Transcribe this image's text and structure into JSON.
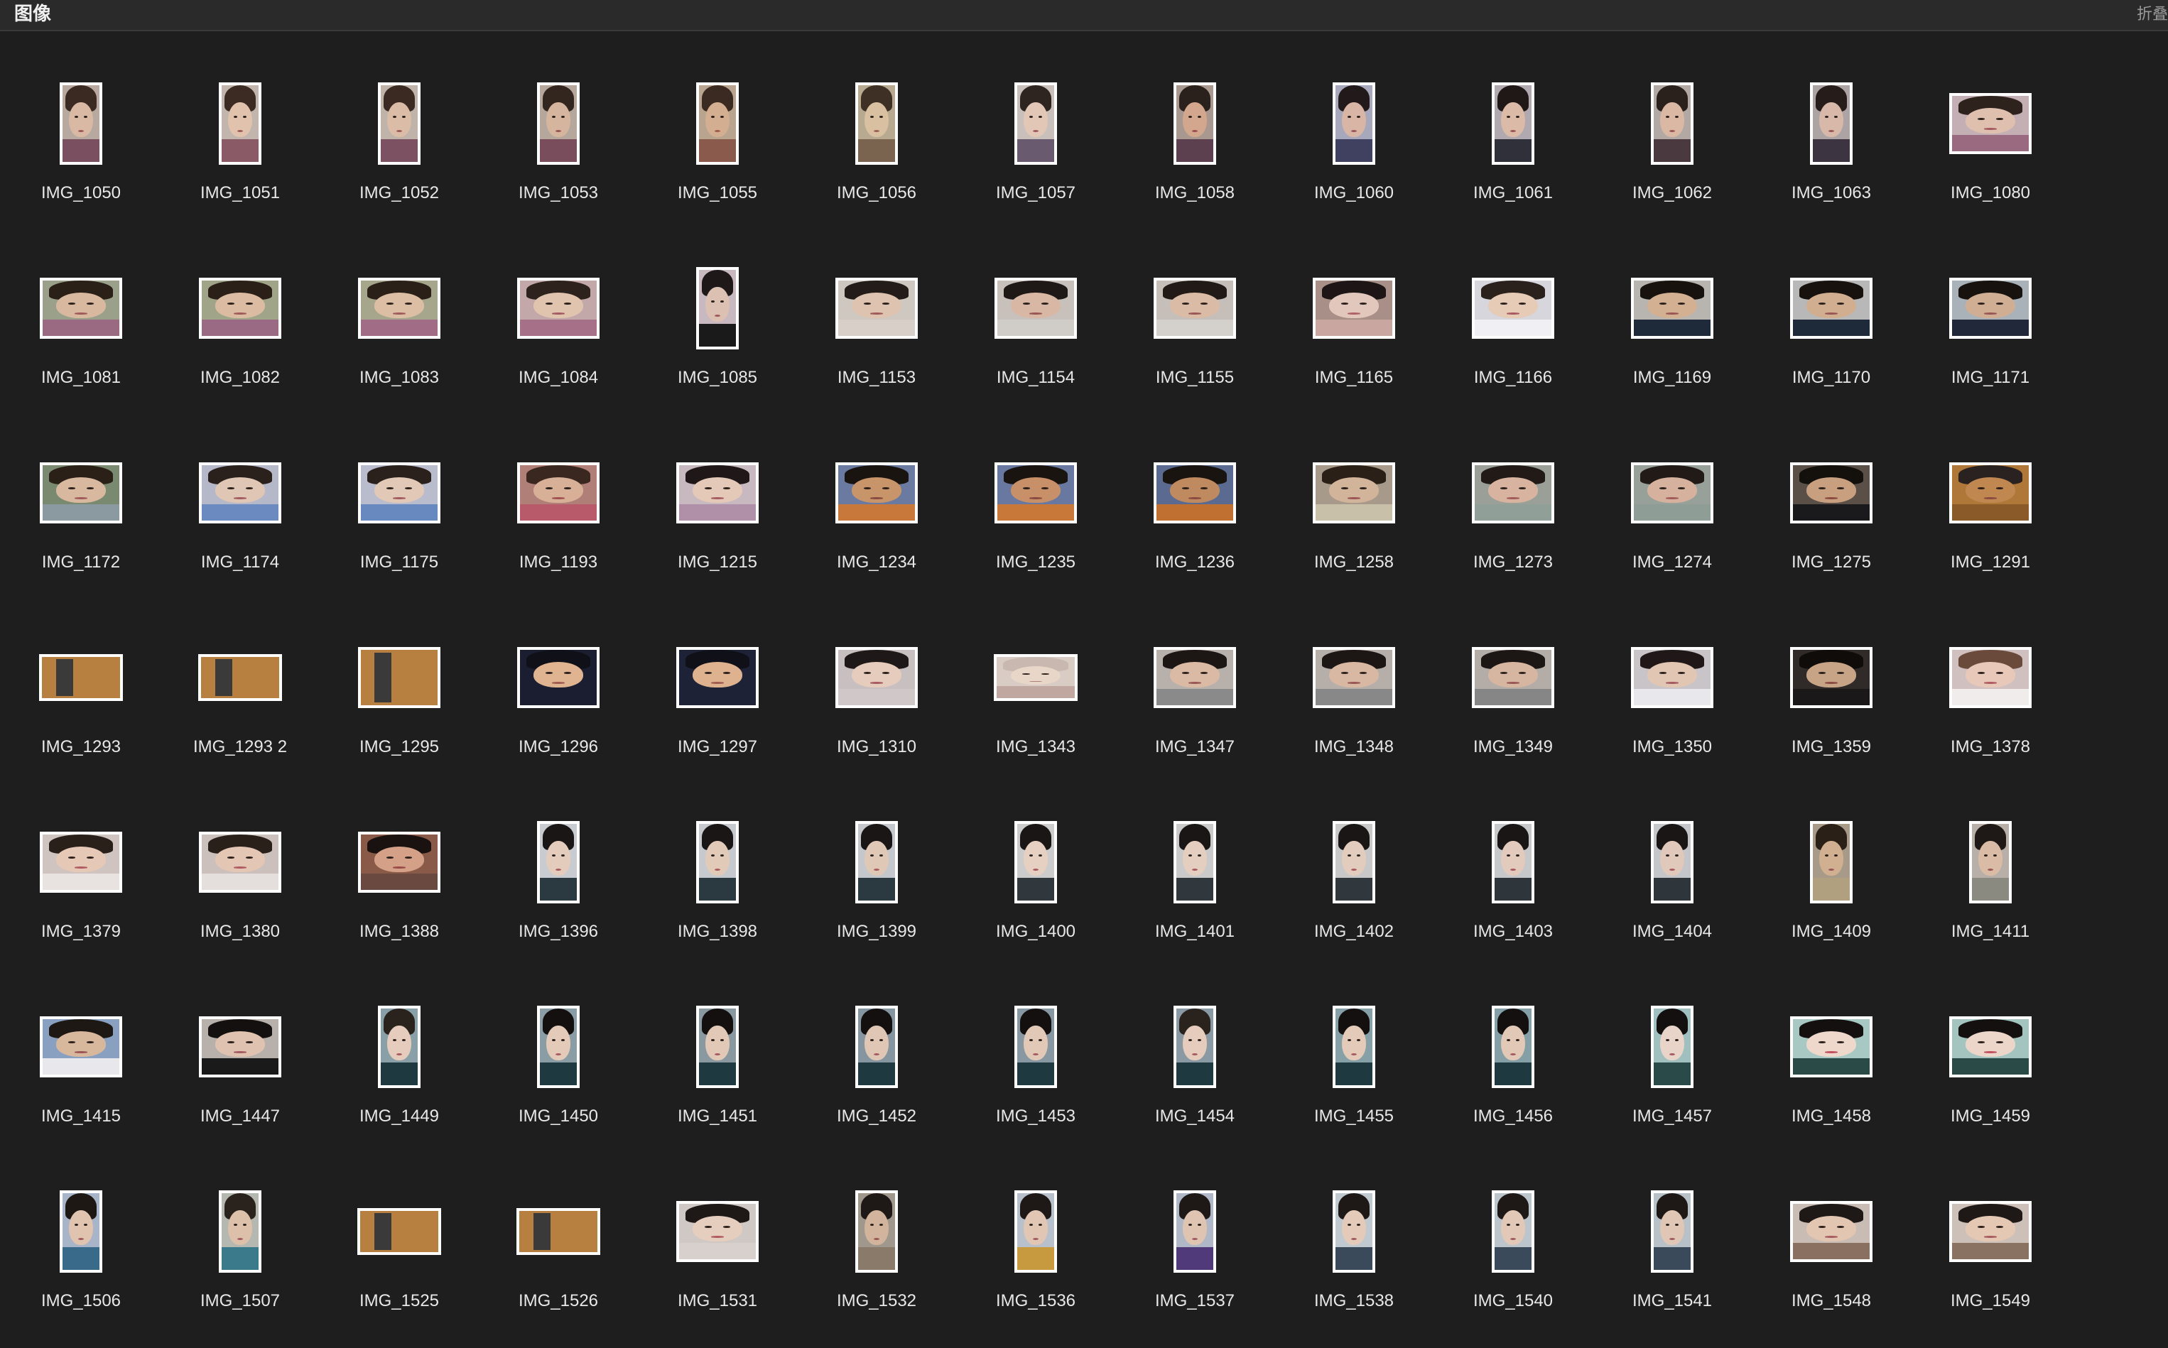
{
  "header": {
    "title": "图像",
    "collapse_label": "折叠"
  },
  "colors": {
    "background": "#1e1e1e",
    "header_bg": "#2a2a2a",
    "label_text": "#e8e8e8"
  },
  "images": [
    {
      "name": "IMG_1050",
      "shape": "portrait",
      "bg": "#b8a9a0",
      "skin": "#d9b9a3",
      "hair": "#3a2a22",
      "shirt": "#7a5060",
      "mouth": "#a0575a"
    },
    {
      "name": "IMG_1051",
      "shape": "portrait",
      "bg": "#c2b5ae",
      "skin": "#e0c2ad",
      "hair": "#3b2b22",
      "shirt": "#8a5a66",
      "mouth": "#a05a5a"
    },
    {
      "name": "IMG_1052",
      "shape": "portrait",
      "bg": "#bfb3aa",
      "skin": "#dbbca6",
      "hair": "#3a2a22",
      "shirt": "#7c5262",
      "mouth": "#9e5a58"
    },
    {
      "name": "IMG_1053",
      "shape": "portrait",
      "bg": "#b6a79c",
      "skin": "#d6b59f",
      "hair": "#33261f",
      "shirt": "#7a4d5c",
      "mouth": "#9a5555"
    },
    {
      "name": "IMG_1055",
      "shape": "portrait",
      "bg": "#b9a58f",
      "skin": "#d4ae90",
      "hair": "#3a2a22",
      "shirt": "#8a5a4c",
      "mouth": "#a05a50"
    },
    {
      "name": "IMG_1056",
      "shape": "portrait",
      "bg": "#b8aa90",
      "skin": "#d8c0a0",
      "hair": "#3e3024",
      "shirt": "#7a6450",
      "mouth": "#a0605a"
    },
    {
      "name": "IMG_1057",
      "shape": "portrait",
      "bg": "#c9c0bc",
      "skin": "#e2c6b6",
      "hair": "#2e2420",
      "shirt": "#6a5a70",
      "mouth": "#a05a60"
    },
    {
      "name": "IMG_1058",
      "shape": "portrait",
      "bg": "#a89890",
      "skin": "#d3a78e",
      "hair": "#2a201c",
      "shirt": "#5c4050",
      "mouth": "#9a4e50"
    },
    {
      "name": "IMG_1060",
      "shape": "portrait",
      "bg": "#a8a8bc",
      "skin": "#d9b5a5",
      "hair": "#221a1a",
      "shirt": "#404060",
      "mouth": "#9c5558"
    },
    {
      "name": "IMG_1061",
      "shape": "portrait",
      "bg": "#b0aab0",
      "skin": "#dbbba8",
      "hair": "#201816",
      "shirt": "#30303a",
      "mouth": "#9a5555"
    },
    {
      "name": "IMG_1062",
      "shape": "portrait",
      "bg": "#b2a8a4",
      "skin": "#dab8a4",
      "hair": "#2a201c",
      "shirt": "#4a3a40",
      "mouth": "#9a5555"
    },
    {
      "name": "IMG_1063",
      "shape": "portrait",
      "bg": "#aca4a4",
      "skin": "#d8b8a8",
      "hair": "#261d1a",
      "shirt": "#3c3440",
      "mouth": "#9a5555"
    },
    {
      "name": "IMG_1080",
      "shape": "wide",
      "bg": "#c4b0b4",
      "skin": "#dfc0ae",
      "hair": "#2e221c",
      "shirt": "#9a6a80",
      "mouth": "#a35a60"
    },
    {
      "name": "IMG_1081",
      "shape": "wide",
      "bg": "#9aa08a",
      "skin": "#d9b8a0",
      "hair": "#2a2018",
      "shirt": "#9a6a82",
      "mouth": "#a05a5a"
    },
    {
      "name": "IMG_1082",
      "shape": "wide",
      "bg": "#a0a488",
      "skin": "#dbbca2",
      "hair": "#2a2018",
      "shirt": "#9a6a84",
      "mouth": "#a05a5a"
    },
    {
      "name": "IMG_1083",
      "shape": "wide",
      "bg": "#a6a68c",
      "skin": "#dcbea4",
      "hair": "#2a2018",
      "shirt": "#a06c86",
      "mouth": "#a05a5a"
    },
    {
      "name": "IMG_1084",
      "shape": "wide",
      "bg": "#c2a8a8",
      "skin": "#e0c4ae",
      "hair": "#2e221c",
      "shirt": "#a67088",
      "mouth": "#a35a60"
    },
    {
      "name": "IMG_1085",
      "shape": "portrait",
      "bg": "#c8b8c0",
      "skin": "#dcc0b2",
      "hair": "#1e1818",
      "shirt": "#1a1a1a",
      "mouth": "#a05a5a"
    },
    {
      "name": "IMG_1153",
      "shape": "wide",
      "bg": "#cfc8c0",
      "skin": "#dec4b0",
      "hair": "#241c18",
      "shirt": "#d8d0c8",
      "mouth": "#a05a5a"
    },
    {
      "name": "IMG_1154",
      "shape": "wide",
      "bg": "#c8c0ba",
      "skin": "#d8b8a4",
      "hair": "#1e1816",
      "shirt": "#d0ccc8",
      "mouth": "#9a5555"
    },
    {
      "name": "IMG_1155",
      "shape": "wide",
      "bg": "#c6beb8",
      "skin": "#dabca6",
      "hair": "#221a16",
      "shirt": "#d4d0cc",
      "mouth": "#9a5555"
    },
    {
      "name": "IMG_1165",
      "shape": "wide",
      "bg": "#a89088",
      "skin": "#e2c8bc",
      "hair": "#1e1616",
      "shirt": "#caa6a0",
      "mouth": "#b06068"
    },
    {
      "name": "IMG_1166",
      "shape": "wide",
      "bg": "#d6d6dc",
      "skin": "#e6cbb6",
      "hair": "#2a201c",
      "shirt": "#f0f0f4",
      "mouth": "#a85a60"
    },
    {
      "name": "IMG_1169",
      "shape": "wide",
      "bg": "#b8b4b0",
      "skin": "#d4b092",
      "hair": "#18120e",
      "shirt": "#1e2a3a",
      "mouth": "#9a5555"
    },
    {
      "name": "IMG_1170",
      "shape": "wide",
      "bg": "#b8b8b8",
      "skin": "#d2ae90",
      "hair": "#18120e",
      "shirt": "#1e2a3a",
      "mouth": "#9a5555"
    },
    {
      "name": "IMG_1171",
      "shape": "wide",
      "bg": "#a8b2b8",
      "skin": "#cfae94",
      "hair": "#18120e",
      "shirt": "#20283a",
      "mouth": "#9a5555"
    },
    {
      "name": "IMG_1172",
      "shape": "wide",
      "bg": "#7a8a70",
      "skin": "#d8b89e",
      "hair": "#2a2018",
      "shirt": "#8a9aa0",
      "mouth": "#a05a5a"
    },
    {
      "name": "IMG_1174",
      "shape": "wide",
      "bg": "#b4b8c8",
      "skin": "#e0c6b4",
      "hair": "#2a201c",
      "shirt": "#6a8ac0",
      "mouth": "#a35a60"
    },
    {
      "name": "IMG_1175",
      "shape": "wide",
      "bg": "#b8bccc",
      "skin": "#e2c8b6",
      "hair": "#2a201c",
      "shirt": "#6888c0",
      "mouth": "#a35a60"
    },
    {
      "name": "IMG_1193",
      "shape": "wide",
      "bg": "#b08078",
      "skin": "#d8b098",
      "hair": "#3a2820",
      "shirt": "#b85a6a",
      "mouth": "#a05050"
    },
    {
      "name": "IMG_1215",
      "shape": "wide",
      "bg": "#c8b8c0",
      "skin": "#e4c8b8",
      "hair": "#201818",
      "shirt": "#b090a8",
      "mouth": "#a85a62"
    },
    {
      "name": "IMG_1234",
      "shape": "wide",
      "bg": "#6a7aa0",
      "skin": "#c8946a",
      "hair": "#1a1410",
      "shirt": "#c8783a",
      "mouth": "#8a4a40"
    },
    {
      "name": "IMG_1235",
      "shape": "wide",
      "bg": "#6878a0",
      "skin": "#c89068",
      "hair": "#1a1410",
      "shirt": "#c87838",
      "mouth": "#8a4a40"
    },
    {
      "name": "IMG_1236",
      "shape": "wide",
      "bg": "#5a6a90",
      "skin": "#c08a60",
      "hair": "#1a1410",
      "shirt": "#c07030",
      "mouth": "#8a4a40"
    },
    {
      "name": "IMG_1258",
      "shape": "wide",
      "bg": "#a89a8a",
      "skin": "#d2b49a",
      "hair": "#2a2018",
      "shirt": "#c8c0a8",
      "mouth": "#9a5555"
    },
    {
      "name": "IMG_1273",
      "shape": "wide",
      "bg": "#9aa098",
      "skin": "#d8b4a0",
      "hair": "#221a16",
      "shirt": "#90a098",
      "mouth": "#a05a5a"
    },
    {
      "name": "IMG_1274",
      "shape": "wide",
      "bg": "#98a09a",
      "skin": "#d6b29e",
      "hair": "#221a16",
      "shirt": "#8e9e96",
      "mouth": "#a05a5a"
    },
    {
      "name": "IMG_1275",
      "shape": "wide",
      "bg": "#5a5048",
      "skin": "#c8a080",
      "hair": "#14100c",
      "shirt": "#1a1a1c",
      "mouth": "#8a4a40"
    },
    {
      "name": "IMG_1291",
      "shape": "wide",
      "bg": "#b07838",
      "skin": "#c08850",
      "hair": "#2a2220",
      "shirt": "#8a5a28",
      "mouth": "#8a4a40"
    },
    {
      "name": "IMG_1293",
      "shape": "landscape",
      "bg": "#b88040",
      "skin": "#c89050",
      "hair": "#2a2220",
      "shirt": "#9a6a30",
      "mouth": "#8a4a40",
      "door": true
    },
    {
      "name": "IMG_1293 2",
      "shape": "landscape",
      "bg": "#b88040",
      "skin": "#c89050",
      "hair": "#2a2220",
      "shirt": "#9a6a30",
      "mouth": "#8a4a40",
      "door": true
    },
    {
      "name": "IMG_1295",
      "shape": "wide",
      "bg": "#b88040",
      "skin": "#c89050",
      "hair": "#2a2220",
      "shirt": "#9a6a30",
      "mouth": "#8a4a40",
      "door": true
    },
    {
      "name": "IMG_1296",
      "shape": "wide",
      "bg": "#1a1e30",
      "skin": "#e0b490",
      "hair": "#101018",
      "shirt": "#1a1e30",
      "mouth": "#a05a50"
    },
    {
      "name": "IMG_1297",
      "shape": "wide",
      "bg": "#1e2236",
      "skin": "#deb28e",
      "hair": "#101018",
      "shirt": "#1e2236",
      "mouth": "#a05a50"
    },
    {
      "name": "IMG_1310",
      "shape": "wide",
      "bg": "#c8c0c0",
      "skin": "#e6ccbc",
      "hair": "#1e1818",
      "shirt": "#d0c8c8",
      "mouth": "#a85a62"
    },
    {
      "name": "IMG_1343",
      "shape": "landscape",
      "bg": "#d8ccc4",
      "skin": "#e8d6c8",
      "hair": "#c8b8b0",
      "shirt": "#c0a8a0",
      "mouth": "#b08078"
    },
    {
      "name": "IMG_1347",
      "shape": "wide",
      "bg": "#b8b0aa",
      "skin": "#dabaa4",
      "hair": "#1c1614",
      "shirt": "#8a8a8a",
      "mouth": "#9a5555"
    },
    {
      "name": "IMG_1348",
      "shape": "wide",
      "bg": "#b6aea8",
      "skin": "#d8b8a2",
      "hair": "#1c1614",
      "shirt": "#888888",
      "mouth": "#9a5555"
    },
    {
      "name": "IMG_1349",
      "shape": "wide",
      "bg": "#b4aca6",
      "skin": "#d6b6a0",
      "hair": "#1c1614",
      "shirt": "#868686",
      "mouth": "#9a5555"
    },
    {
      "name": "IMG_1350",
      "shape": "wide",
      "bg": "#c8c4c8",
      "skin": "#e2c6b4",
      "hair": "#201818",
      "shirt": "#e8e8ec",
      "mouth": "#a35a60"
    },
    {
      "name": "IMG_1359",
      "shape": "wide",
      "bg": "#302a28",
      "skin": "#c8a486",
      "hair": "#100c0a",
      "shirt": "#1a1818",
      "mouth": "#8a4a40"
    },
    {
      "name": "IMG_1378",
      "shape": "wide",
      "bg": "#d0c0c0",
      "skin": "#e8c8b8",
      "hair": "#6a4a3a",
      "shirt": "#f0ecec",
      "mouth": "#b05a62"
    },
    {
      "name": "IMG_1379",
      "shape": "wide",
      "bg": "#d0c4c0",
      "skin": "#e6c8b6",
      "hair": "#2a201a",
      "shirt": "#e8e2e0",
      "mouth": "#b05a62"
    },
    {
      "name": "IMG_1380",
      "shape": "wide",
      "bg": "#ccc0bc",
      "skin": "#e4c6b4",
      "hair": "#2a201a",
      "shirt": "#e4dedc",
      "mouth": "#b05a62"
    },
    {
      "name": "IMG_1388",
      "shape": "wide",
      "bg": "#8a5a48",
      "skin": "#d4a088",
      "hair": "#1a1210",
      "shirt": "#6a4a40",
      "mouth": "#9a4a48"
    },
    {
      "name": "IMG_1396",
      "shape": "portrait",
      "bg": "#c8ccd0",
      "skin": "#e4ccbc",
      "hair": "#1a1616",
      "shirt": "#2a3a40",
      "mouth": "#a85a60"
    },
    {
      "name": "IMG_1398",
      "shape": "portrait",
      "bg": "#c6cace",
      "skin": "#e2cab8",
      "hair": "#1a1616",
      "shirt": "#2a3a40",
      "mouth": "#a85a60"
    },
    {
      "name": "IMG_1399",
      "shape": "portrait",
      "bg": "#c4c8cc",
      "skin": "#e0c8b6",
      "hair": "#1a1616",
      "shirt": "#2a3a40",
      "mouth": "#a85a60"
    },
    {
      "name": "IMG_1400",
      "shape": "portrait",
      "bg": "#cccccc",
      "skin": "#e6d0c2",
      "hair": "#1a1616",
      "shirt": "#30383e",
      "mouth": "#a85a60"
    },
    {
      "name": "IMG_1401",
      "shape": "portrait",
      "bg": "#cacaca",
      "skin": "#e4cec0",
      "hair": "#1a1616",
      "shirt": "#30383e",
      "mouth": "#a85a60"
    },
    {
      "name": "IMG_1402",
      "shape": "portrait",
      "bg": "#c8c8c8",
      "skin": "#e2ccbe",
      "hair": "#1a1616",
      "shirt": "#30383e",
      "mouth": "#a85a60"
    },
    {
      "name": "IMG_1403",
      "shape": "portrait",
      "bg": "#c6c8ca",
      "skin": "#e2cabc",
      "hair": "#1a1616",
      "shirt": "#2e363c",
      "mouth": "#a85a60"
    },
    {
      "name": "IMG_1404",
      "shape": "portrait",
      "bg": "#c4c6ca",
      "skin": "#e0c8ba",
      "hair": "#1a1616",
      "shirt": "#2e363c",
      "mouth": "#a85a60"
    },
    {
      "name": "IMG_1409",
      "shape": "portrait",
      "bg": "#a89a88",
      "skin": "#d0b090",
      "hair": "#2a2018",
      "shirt": "#b0a080",
      "mouth": "#9a5555"
    },
    {
      "name": "IMG_1411",
      "shape": "portrait",
      "bg": "#b8b0a8",
      "skin": "#dabca6",
      "hair": "#1e1816",
      "shirt": "#8a8a80",
      "mouth": "#9a5555"
    },
    {
      "name": "IMG_1415",
      "shape": "wide",
      "bg": "#8aa0c0",
      "skin": "#d8b89c",
      "hair": "#1e1814",
      "shirt": "#e8e8ec",
      "mouth": "#9a5555"
    },
    {
      "name": "IMG_1447",
      "shape": "wide",
      "bg": "#b8b0aa",
      "skin": "#e0c2b0",
      "hair": "#141010",
      "shirt": "#1a1a1a",
      "mouth": "#a35a60"
    },
    {
      "name": "IMG_1449",
      "shape": "portrait",
      "bg": "#8aa0a8",
      "skin": "#e6ccbc",
      "hair": "#2a221c",
      "shirt": "#1e3a40",
      "mouth": "#a85a60"
    },
    {
      "name": "IMG_1450",
      "shape": "portrait",
      "bg": "#8a9ca4",
      "skin": "#e4cab8",
      "hair": "#141010",
      "shirt": "#1e3a40",
      "mouth": "#a85a60"
    },
    {
      "name": "IMG_1451",
      "shape": "portrait",
      "bg": "#8a98a0",
      "skin": "#e2c8b6",
      "hair": "#141010",
      "shirt": "#1e3a40",
      "mouth": "#a85a60"
    },
    {
      "name": "IMG_1452",
      "shape": "portrait",
      "bg": "#8696a0",
      "skin": "#e0c6b4",
      "hair": "#141010",
      "shirt": "#1e3a40",
      "mouth": "#a85a60"
    },
    {
      "name": "IMG_1453",
      "shape": "portrait",
      "bg": "#8898a2",
      "skin": "#e2c8b6",
      "hair": "#141010",
      "shirt": "#1e3a40",
      "mouth": "#a85a60"
    },
    {
      "name": "IMG_1454",
      "shape": "portrait",
      "bg": "#8a9aa4",
      "skin": "#e6ccbc",
      "hair": "#2a221c",
      "shirt": "#1e3a40",
      "mouth": "#a85a60"
    },
    {
      "name": "IMG_1455",
      "shape": "portrait",
      "bg": "#86a0a8",
      "skin": "#e4cab8",
      "hair": "#141010",
      "shirt": "#1e3a40",
      "mouth": "#a85a60"
    },
    {
      "name": "IMG_1456",
      "shape": "portrait",
      "bg": "#84a0a6",
      "skin": "#e2c8b6",
      "hair": "#141010",
      "shirt": "#1e3a40",
      "mouth": "#a85a60"
    },
    {
      "name": "IMG_1457",
      "shape": "portrait",
      "bg": "#a0c0c0",
      "skin": "#e8d4c8",
      "hair": "#141010",
      "shirt": "#2a4a4a",
      "mouth": "#a85a60"
    },
    {
      "name": "IMG_1458",
      "shape": "wide",
      "bg": "#a8c8c4",
      "skin": "#eed8cc",
      "hair": "#141010",
      "shirt": "#2a4a48",
      "mouth": "#c05060"
    },
    {
      "name": "IMG_1459",
      "shape": "wide",
      "bg": "#a4c4c0",
      "skin": "#ecd6ca",
      "hair": "#141010",
      "shirt": "#2a4a48",
      "mouth": "#c05060"
    },
    {
      "name": "IMG_1506",
      "shape": "portrait",
      "bg": "#a8b4c8",
      "skin": "#e0c4b0",
      "hair": "#1e1814",
      "shirt": "#3a6a8a",
      "mouth": "#a35a60"
    },
    {
      "name": "IMG_1507",
      "shape": "portrait",
      "bg": "#b4b8b0",
      "skin": "#dcc0aa",
      "hair": "#2a221c",
      "shirt": "#3a7a8a",
      "mouth": "#a35a60"
    },
    {
      "name": "IMG_1525",
      "shape": "landscape",
      "bg": "#b88040",
      "skin": "#c89050",
      "hair": "#2a2220",
      "shirt": "#9a6a30",
      "mouth": "#8a4a40",
      "door": true
    },
    {
      "name": "IMG_1526",
      "shape": "landscape",
      "bg": "#b88040",
      "skin": "#c89050",
      "hair": "#2a2220",
      "shirt": "#9a6a30",
      "mouth": "#8a4a40",
      "door": true
    },
    {
      "name": "IMG_1531",
      "shape": "wide",
      "bg": "#d0c8c4",
      "skin": "#e6cebe",
      "hair": "#1e1816",
      "shirt": "#d8d0cc",
      "mouth": "#b05a62"
    },
    {
      "name": "IMG_1532",
      "shape": "portrait",
      "bg": "#a0988c",
      "skin": "#d2b49c",
      "hair": "#1e1816",
      "shirt": "#8a7a6a",
      "mouth": "#9a5555"
    },
    {
      "name": "IMG_1536",
      "shape": "portrait",
      "bg": "#b8c0cc",
      "skin": "#e2c6b4",
      "hair": "#1e1816",
      "shirt": "#c89a40",
      "mouth": "#a35a60"
    },
    {
      "name": "IMG_1537",
      "shape": "portrait",
      "bg": "#b0b8c8",
      "skin": "#e0c4b2",
      "hair": "#1e1816",
      "shirt": "#503a7a",
      "mouth": "#a35a60"
    },
    {
      "name": "IMG_1538",
      "shape": "portrait",
      "bg": "#c0c8d0",
      "skin": "#e4cab8",
      "hair": "#1e1816",
      "shirt": "#3a4a5a",
      "mouth": "#a35a60"
    },
    {
      "name": "IMG_1540",
      "shape": "portrait",
      "bg": "#bcc4cc",
      "skin": "#e2c8b6",
      "hair": "#1e1816",
      "shirt": "#3a4a5a",
      "mouth": "#a35a60"
    },
    {
      "name": "IMG_1541",
      "shape": "portrait",
      "bg": "#b8c0c8",
      "skin": "#e0c6b4",
      "hair": "#1e1816",
      "shirt": "#3a4a5a",
      "mouth": "#a35a60"
    },
    {
      "name": "IMG_1548",
      "shape": "wide",
      "bg": "#c8bcb4",
      "skin": "#e2c6b2",
      "hair": "#1e1816",
      "shirt": "#8a7060",
      "mouth": "#a85a60"
    },
    {
      "name": "IMG_1549",
      "shape": "wide",
      "bg": "#ccc0b8",
      "skin": "#e4c8b4",
      "hair": "#1e1816",
      "shirt": "#8a7262",
      "mouth": "#a85a60"
    }
  ]
}
